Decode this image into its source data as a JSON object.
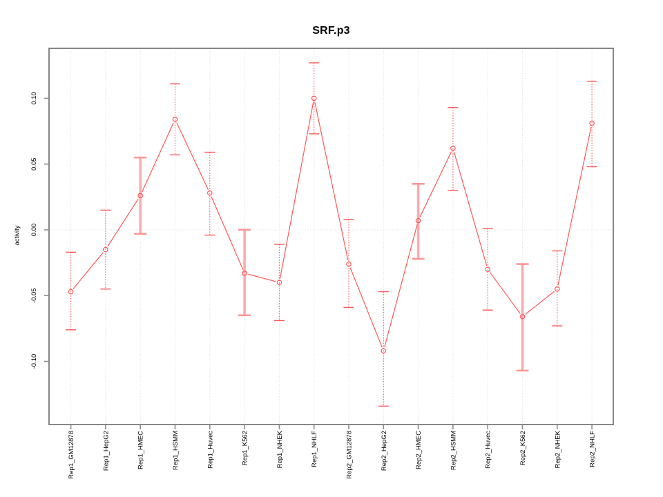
{
  "page": {
    "background": "#ffffff"
  },
  "chart_data": {
    "type": "line",
    "title": "SRF.p3",
    "xlabel": "",
    "ylabel": "activity",
    "ylim": [
      -0.148,
      0.138
    ],
    "yticks": [
      -0.1,
      -0.05,
      0.0,
      0.05,
      0.1
    ],
    "ytick_labels": [
      "-0.10",
      "-0.05",
      "0.00",
      "0.05",
      "0.10"
    ],
    "legend_position": "none",
    "grid": "light dotted vertical line at each category; light dotted horizontal line at y=0",
    "point_style": "open-circle",
    "series_color": "#ff4d4d",
    "pale_bar_color": "#ff9090",
    "grid_color": "#dadada",
    "box_color": "#7a7a7a",
    "tick_color": "#8a8a8a",
    "categories": [
      "Rep1_GM12878",
      "Rep1_HepG2",
      "Rep1_HMEC",
      "Rep1_HSMM",
      "Rep1_Huvec",
      "Rep1_K562",
      "Rep1_NHEK",
      "Rep1_NHLF",
      "Rep2_GM12878",
      "Rep2_HepG2",
      "Rep2_HMEC",
      "Rep2_HSMM",
      "Rep2_Huvec",
      "Rep2_K562",
      "Rep2_NHEK",
      "Rep2_NHLF"
    ],
    "series": [
      {
        "name": "activity",
        "values": [
          -0.047,
          -0.015,
          0.026,
          0.084,
          0.028,
          -0.033,
          -0.04,
          0.1,
          -0.026,
          -0.092,
          0.007,
          0.062,
          -0.03,
          -0.066,
          -0.045,
          0.081
        ],
        "error_upper": [
          -0.017,
          0.015,
          0.055,
          0.111,
          0.059,
          0.0,
          -0.011,
          0.127,
          0.008,
          -0.047,
          0.035,
          0.093,
          0.001,
          -0.026,
          -0.016,
          0.113
        ],
        "error_lower": [
          -0.076,
          -0.045,
          -0.003,
          0.057,
          -0.004,
          -0.065,
          -0.069,
          0.073,
          -0.059,
          -0.134,
          -0.022,
          0.03,
          -0.061,
          -0.107,
          -0.073,
          0.048
        ]
      }
    ],
    "thick_error_bar_indices": [
      2,
      5,
      10,
      13
    ]
  }
}
